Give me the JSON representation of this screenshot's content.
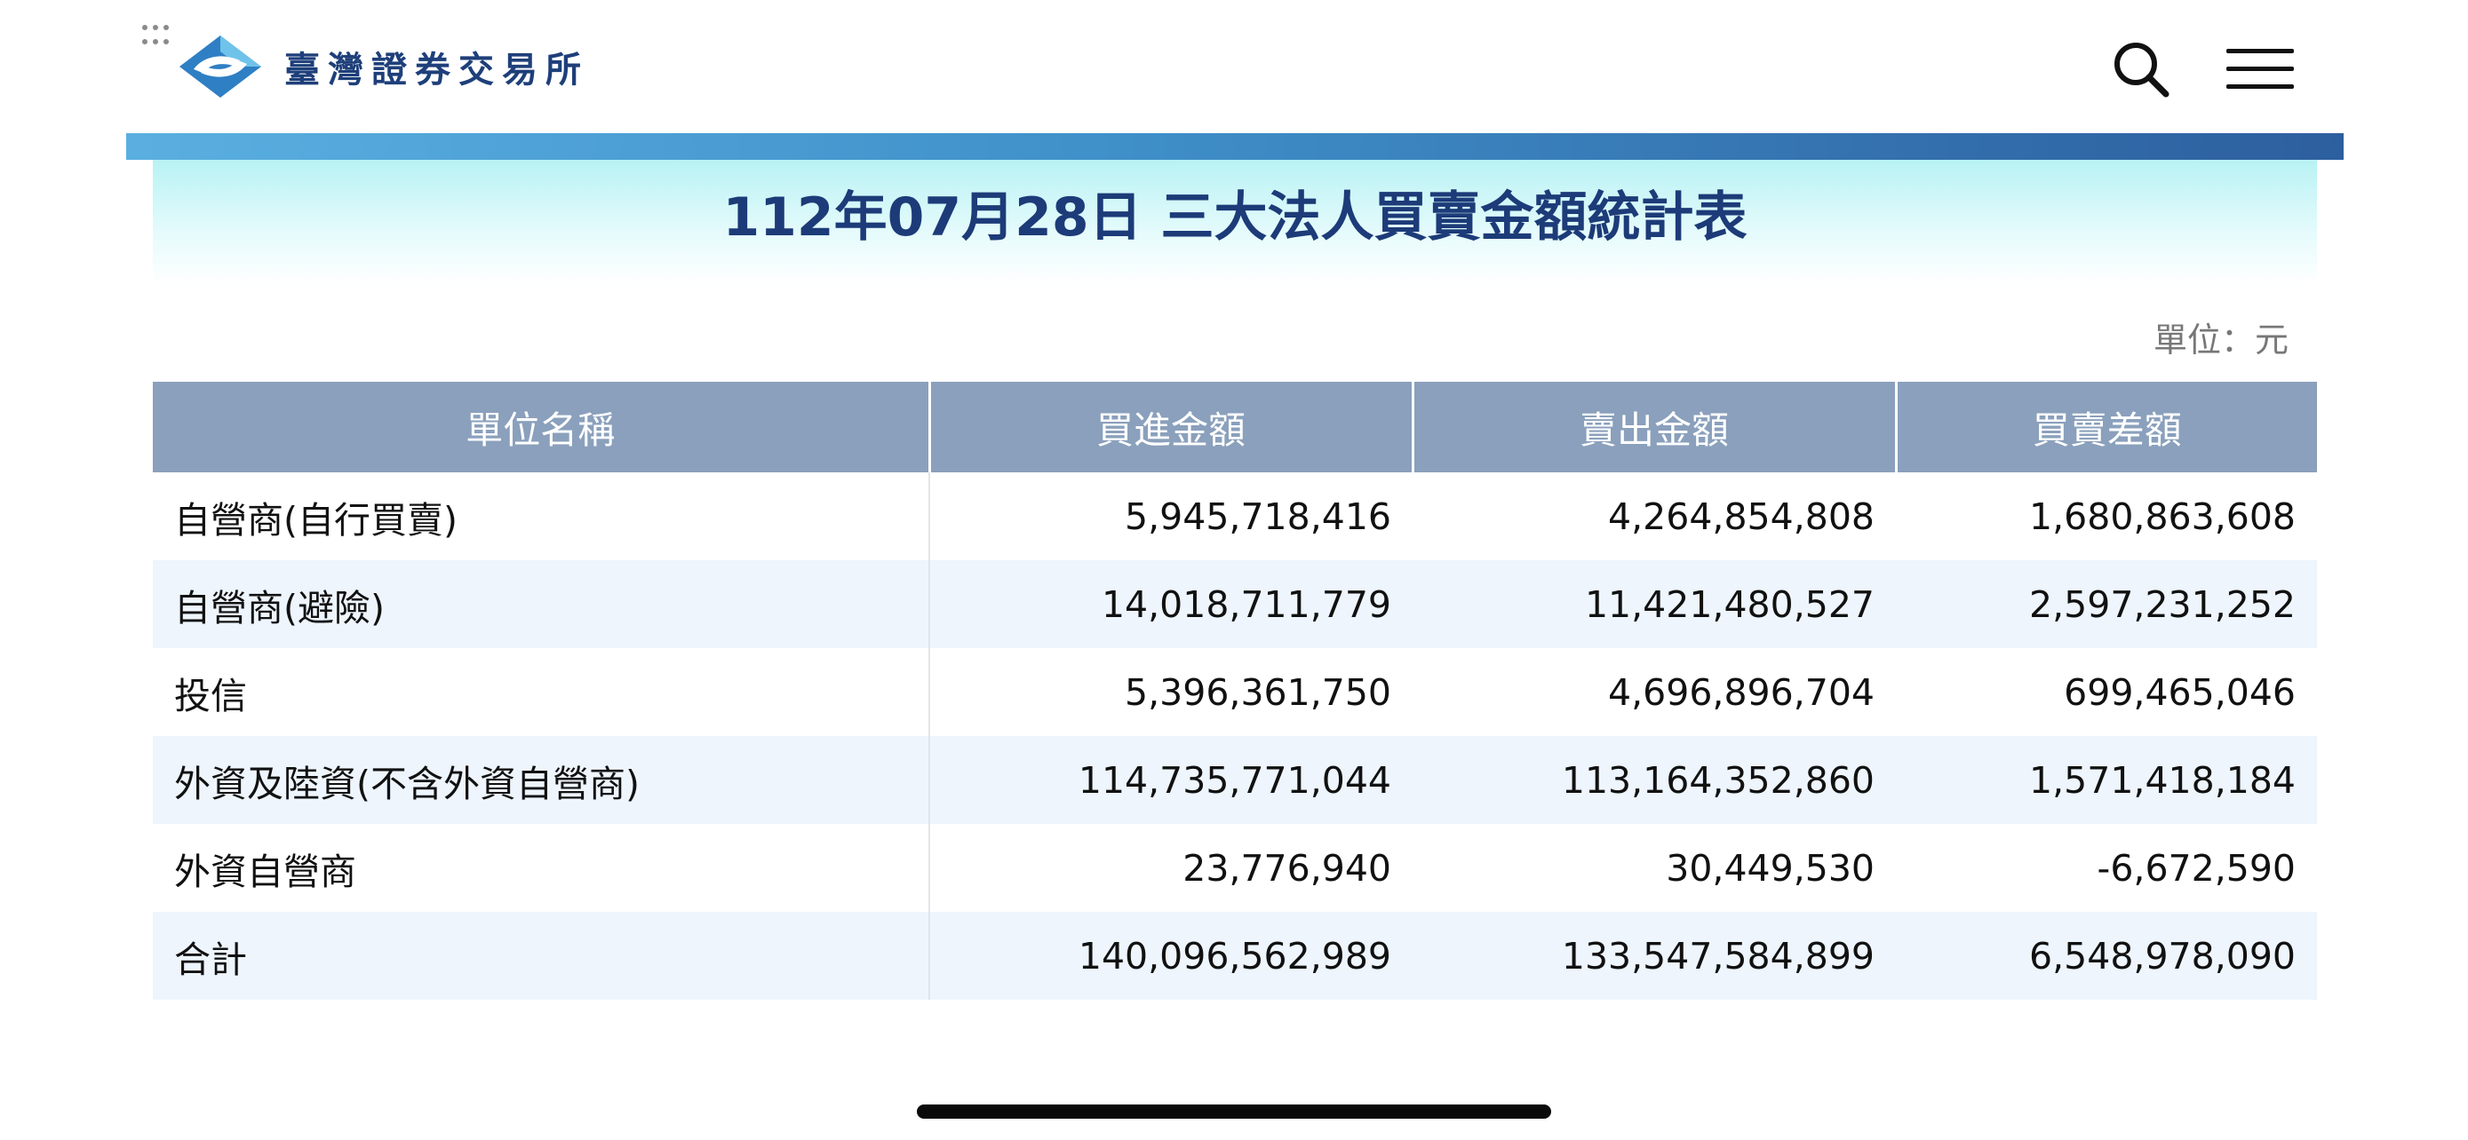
{
  "header": {
    "logo_text": "臺灣證券交易所",
    "search_icon": "search-icon",
    "menu_icon": "hamburger-menu-icon"
  },
  "report": {
    "title": "112年07月28日 三大法人買賣金額統計表",
    "unit": "單位：元"
  },
  "table": {
    "headers": [
      "單位名稱",
      "買進金額",
      "賣出金額",
      "買賣差額"
    ],
    "rows": [
      {
        "name": "自營商(自行買賣)",
        "buy": "5,945,718,416",
        "sell": "4,264,854,808",
        "diff": "1,680,863,608"
      },
      {
        "name": "自營商(避險)",
        "buy": "14,018,711,779",
        "sell": "11,421,480,527",
        "diff": "2,597,231,252"
      },
      {
        "name": "投信",
        "buy": "5,396,361,750",
        "sell": "4,696,896,704",
        "diff": "699,465,046"
      },
      {
        "name": "外資及陸資(不含外資自營商)",
        "buy": "114,735,771,044",
        "sell": "113,164,352,860",
        "diff": "1,571,418,184"
      },
      {
        "name": "外資自營商",
        "buy": "23,776,940",
        "sell": "30,449,530",
        "diff": "-6,672,590"
      },
      {
        "name": "合計",
        "buy": "140,096,562,989",
        "sell": "133,547,584,899",
        "diff": "6,548,978,090"
      }
    ]
  },
  "colors": {
    "brand_navy": "#1c3b78",
    "header_row": "#8aa0bc",
    "alt_row": "#eef5fd",
    "bar_start": "#5aafe0",
    "bar_end": "#2d5f9e"
  }
}
